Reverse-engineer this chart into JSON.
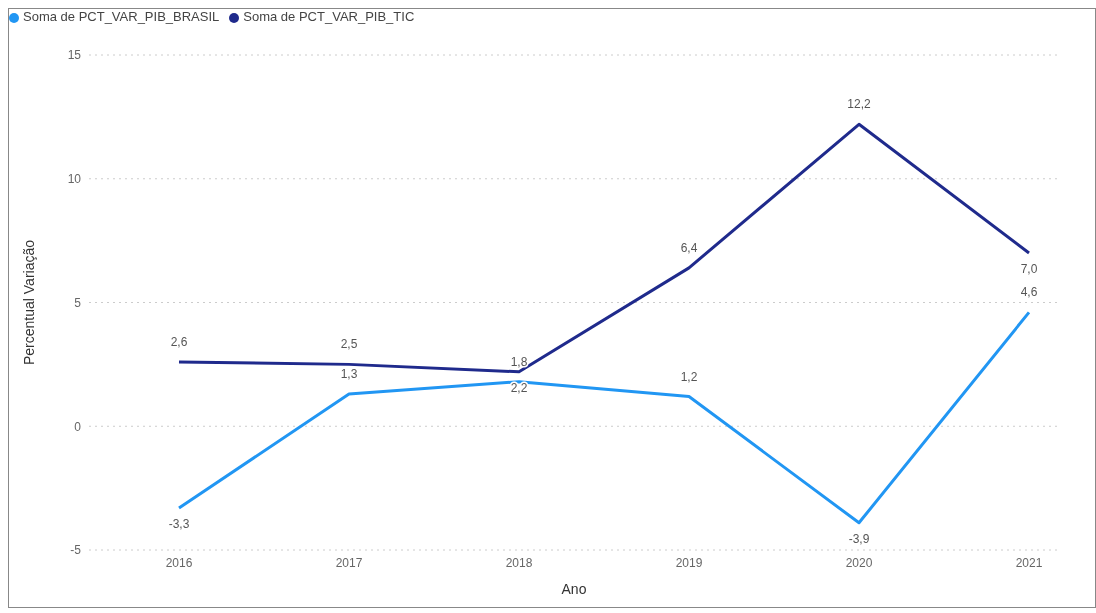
{
  "chart_data": {
    "type": "line",
    "xlabel": "Ano",
    "ylabel": "Percentual Variação",
    "categories": [
      "2016",
      "2017",
      "2018",
      "2019",
      "2020",
      "2021"
    ],
    "series": [
      {
        "name": "Soma de PCT_VAR_PIB_BRASIL",
        "color": "#2196f3",
        "values": [
          -3.3,
          1.3,
          1.8,
          1.2,
          -3.9,
          4.6
        ],
        "value_labels": [
          "-3,3",
          "1,3",
          "1,8",
          "1,2",
          "-3,9",
          "4,6"
        ]
      },
      {
        "name": "Soma de PCT_VAR_PIB_TIC",
        "color": "#1f2a8c",
        "values": [
          2.6,
          2.5,
          2.2,
          6.4,
          12.2,
          7.0
        ],
        "value_labels": [
          "2,6",
          "2,5",
          "2,2",
          "6,4",
          "12,2",
          "7,0"
        ]
      }
    ],
    "ylim": [
      -5,
      15
    ],
    "yticks": [
      -5,
      0,
      5,
      10,
      15
    ],
    "grid": "y",
    "legend": "top left",
    "marker": "none",
    "line_style": "solid"
  }
}
